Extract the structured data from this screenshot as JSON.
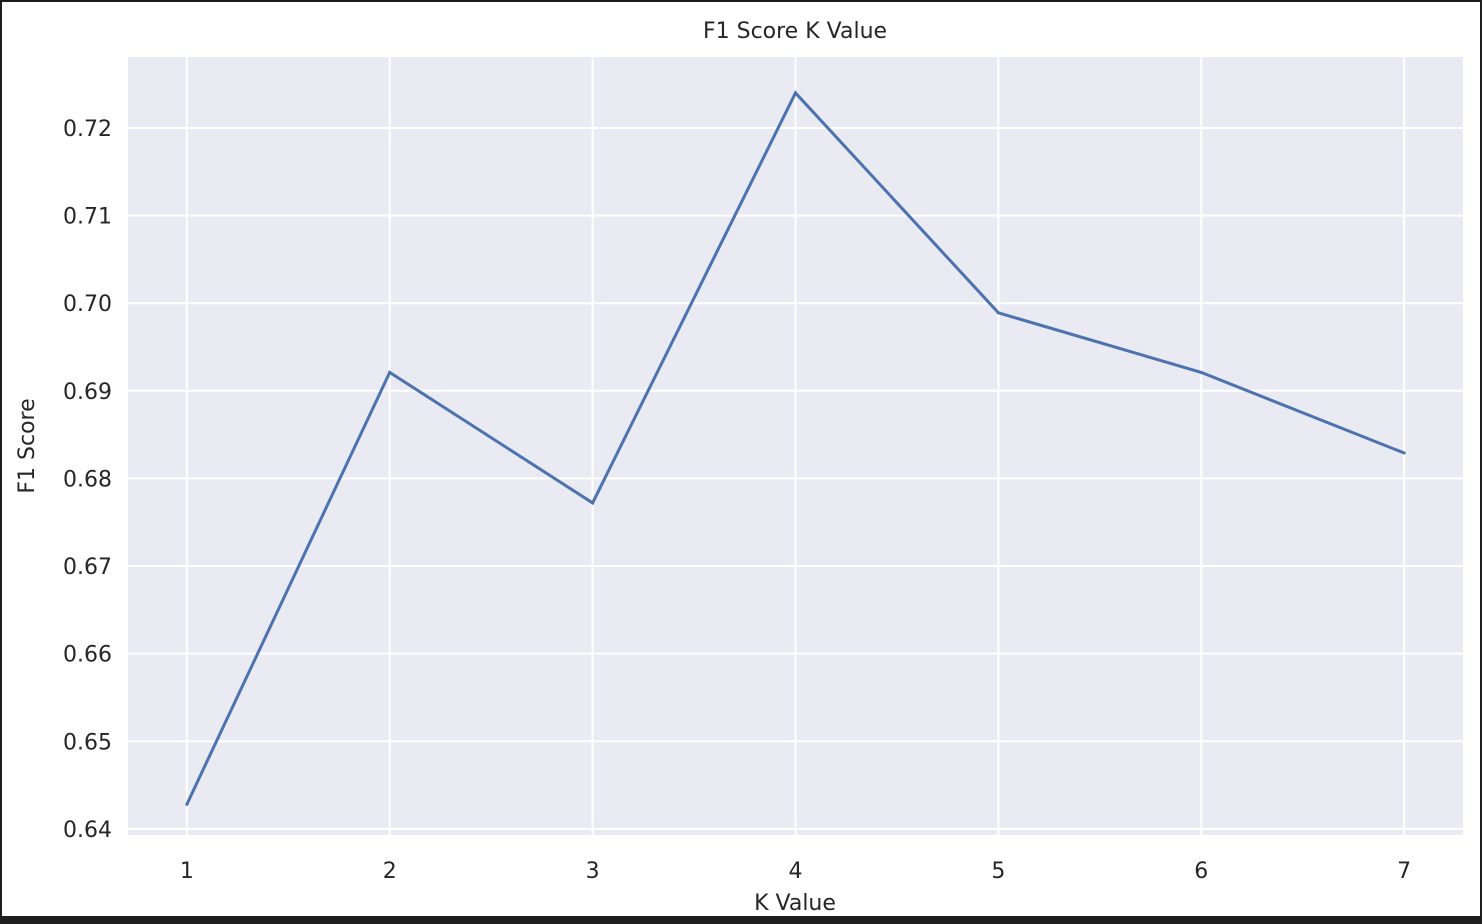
{
  "chart_data": {
    "type": "line",
    "title": "F1 Score K Value",
    "xlabel": "K Value",
    "ylabel": "F1 Score",
    "x": [
      1,
      2,
      3,
      4,
      5,
      6,
      7
    ],
    "x_tick_labels": [
      "1",
      "2",
      "3",
      "4",
      "5",
      "6",
      "7"
    ],
    "y_ticks": [
      0.64,
      0.65,
      0.66,
      0.67,
      0.68,
      0.69,
      0.7,
      0.71,
      0.72
    ],
    "y_tick_labels": [
      "0.64",
      "0.65",
      "0.66",
      "0.67",
      "0.68",
      "0.69",
      "0.70",
      "0.71",
      "0.72"
    ],
    "series": [
      {
        "values": [
          0.6428,
          0.6921,
          0.6772,
          0.724,
          0.6989,
          0.6921,
          0.6829
        ]
      }
    ],
    "xlim": [
      0.71,
      7.29
    ],
    "ylim": [
      0.6393,
      0.7281
    ],
    "grid": true,
    "line_color": "#4c72b0",
    "plot_background": "#eaeaf2",
    "grid_color": "#ffffff"
  }
}
